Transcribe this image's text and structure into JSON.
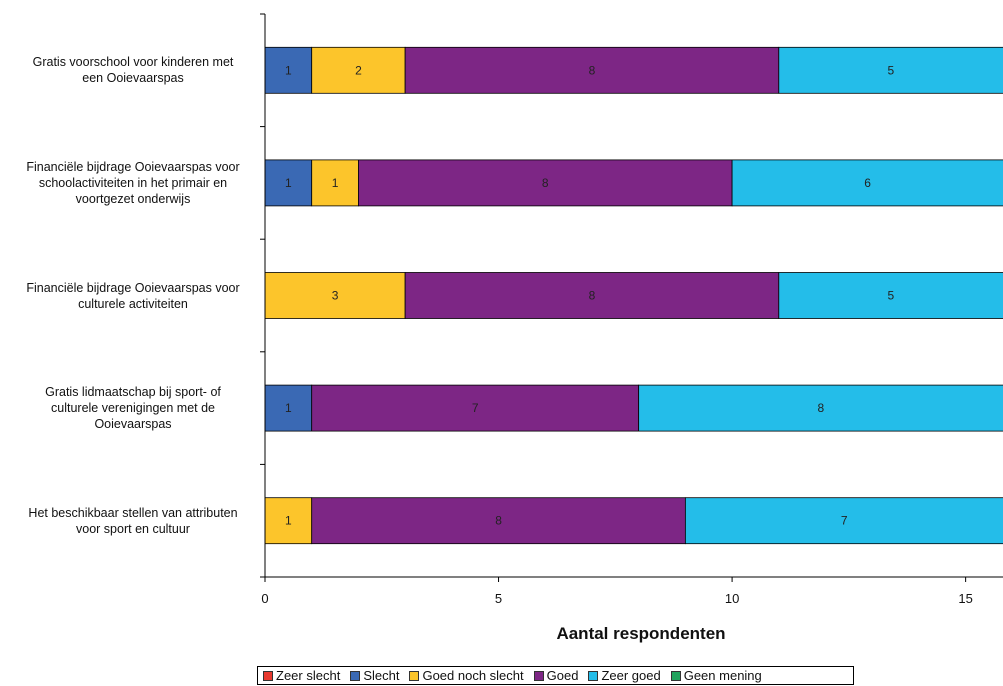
{
  "chart_data": {
    "type": "bar",
    "orientation": "horizontal",
    "stacked": true,
    "categories": [
      "Gratis voorschool voor kinderen met een Ooievaarspas",
      "Financiële bijdrage Ooievaarspas voor schoolactiviteiten in het primair en voortgezet onderwijs",
      "Financiële bijdrage Ooievaarspas voor culturele activiteiten",
      "Gratis lidmaatschap bij sport- of culturele verenigingen met de Ooievaarspas",
      "Het beschikbaar stellen van attributen voor sport en cultuur"
    ],
    "category_lines": [
      [
        "Gratis voorschool voor kinderen met",
        "een Ooievaarspas"
      ],
      [
        "Financiële bijdrage Ooievaarspas voor",
        "schoolactiviteiten in het primair en",
        "voortgezet onderwijs"
      ],
      [
        "Financiële bijdrage Ooievaarspas voor",
        "culturele activiteiten"
      ],
      [
        "Gratis lidmaatschap bij sport- of",
        "culturele verenigingen met de",
        "Ooievaarspas"
      ],
      [
        "Het beschikbaar stellen van attributen",
        "voor sport en cultuur"
      ]
    ],
    "series": [
      {
        "name": "Zeer slecht",
        "color": "#e8392f",
        "values": [
          0,
          0,
          0,
          0,
          0
        ]
      },
      {
        "name": "Slecht",
        "color": "#3a69b4",
        "values": [
          1,
          1,
          0,
          1,
          0
        ]
      },
      {
        "name": "Goed noch slecht",
        "color": "#fcc52b",
        "values": [
          2,
          1,
          3,
          0,
          1
        ]
      },
      {
        "name": "Goed",
        "color": "#7d2685",
        "values": [
          8,
          8,
          8,
          7,
          8
        ]
      },
      {
        "name": "Zeer goed",
        "color": "#24bde9",
        "values": [
          5,
          6,
          5,
          8,
          7
        ]
      },
      {
        "name": "Geen mening",
        "color": "#21a35d",
        "values": [
          0,
          0,
          0,
          0,
          0
        ]
      }
    ],
    "xlabel": "Aantal respondenten",
    "xlim": [
      0,
      15.8
    ],
    "xticks": [
      0,
      5,
      10,
      15
    ],
    "grid": false,
    "legend_position": "bottom"
  }
}
